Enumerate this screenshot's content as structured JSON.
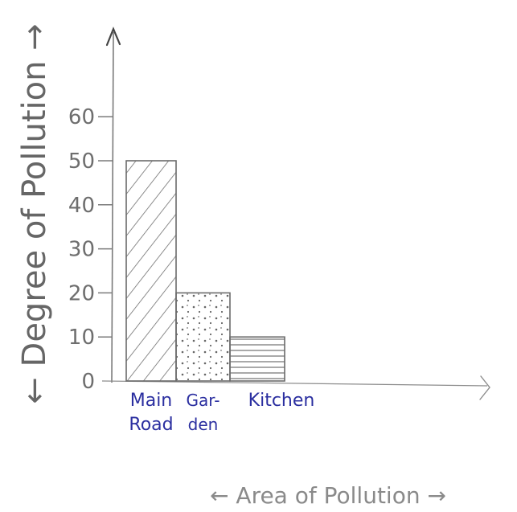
{
  "chart_data": {
    "type": "bar",
    "categories": [
      "Main Road",
      "Gar-den",
      "Kitchen"
    ],
    "category_lines": [
      [
        "Main",
        "Road"
      ],
      [
        "Gar-",
        "den"
      ],
      [
        "Kitchen"
      ]
    ],
    "values": [
      50,
      20,
      10
    ],
    "title": "",
    "xlabel": "← Area of Pollution →",
    "ylabel": "← Degree of Pollution →",
    "ylim": [
      0,
      60
    ],
    "yticks": [
      0,
      10,
      20,
      30,
      40,
      50,
      60
    ],
    "ytick_labels": [
      "0",
      "10",
      "20",
      "30",
      "40",
      "50",
      "60"
    ],
    "bar_fills": [
      "diagonal-hatch",
      "dots",
      "horizontal-lines"
    ],
    "grid": false,
    "legend": "none",
    "colors": {
      "axis": "#7a7a7a",
      "pencil": "#6b6b6b",
      "category_ink": "#2b2fa0",
      "ylabel_ink": "#666666",
      "xlabel_ink": "#8a8a8a"
    },
    "style": "hand-drawn"
  }
}
